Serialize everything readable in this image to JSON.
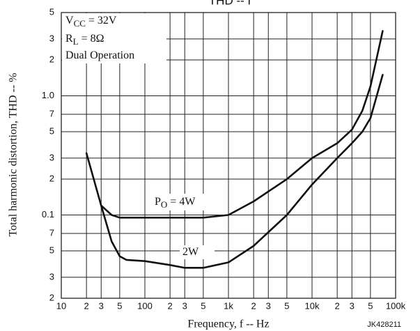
{
  "chart_data": {
    "type": "line",
    "title": "THD -- f",
    "xlabel": "Frequency, f -- Hz",
    "ylabel": "Total harmonic distortion, THD -- %",
    "xscale": "log",
    "yscale": "log",
    "grid": true,
    "color": "#111111",
    "xlim": [
      10,
      100000
    ],
    "ylim": [
      0.02,
      5
    ],
    "xticks": [
      10,
      {
        "value": 20,
        "label": "2"
      },
      {
        "value": 30,
        "label": "3"
      },
      {
        "value": 50,
        "label": "5"
      },
      100,
      {
        "value": 200,
        "label": "2"
      },
      {
        "value": 300,
        "label": "3"
      },
      {
        "value": 500,
        "label": "5"
      },
      {
        "value": 1000,
        "label": "1k"
      },
      {
        "value": 2000,
        "label": "2"
      },
      {
        "value": 3000,
        "label": "3"
      },
      {
        "value": 5000,
        "label": "5"
      },
      {
        "value": 10000,
        "label": "10k"
      },
      {
        "value": 20000,
        "label": "2"
      },
      {
        "value": 30000,
        "label": "3"
      },
      {
        "value": 50000,
        "label": "5"
      },
      {
        "value": 100000,
        "label": "100k"
      }
    ],
    "yticks": [
      5,
      3,
      2,
      {
        "value": 1,
        "label": "1.0"
      },
      {
        "value": 0.7,
        "label": "7"
      },
      {
        "value": 0.5,
        "label": "5"
      },
      {
        "value": 0.3,
        "label": "3"
      },
      {
        "value": 0.2,
        "label": "2"
      },
      0.1,
      {
        "value": 0.07,
        "label": "7"
      },
      {
        "value": 0.05,
        "label": "5"
      },
      {
        "value": 0.03,
        "label": "3"
      },
      {
        "value": 0.02,
        "label": "2"
      }
    ],
    "series": [
      {
        "x": [
          20,
          30,
          40,
          50,
          100,
          500,
          1000,
          2000,
          5000,
          10000,
          20000,
          30000,
          40000,
          50000,
          70000
        ],
        "values": [
          0.33,
          0.12,
          0.1,
          0.095,
          0.095,
          0.095,
          0.1,
          0.13,
          0.2,
          0.3,
          0.4,
          0.52,
          0.75,
          1.2,
          3.5
        ]
      },
      {
        "x": [
          30,
          40,
          50,
          60,
          100,
          200,
          300,
          500,
          1000,
          2000,
          5000,
          10000,
          20000,
          30000,
          40000,
          50000,
          70000
        ],
        "values": [
          0.12,
          0.06,
          0.045,
          0.042,
          0.041,
          0.038,
          0.036,
          0.036,
          0.04,
          0.055,
          0.1,
          0.18,
          0.3,
          0.4,
          0.5,
          0.65,
          1.5
        ]
      }
    ],
    "annotations": [
      {
        "text": "V",
        "sub": "CC",
        "rest": " = 32V"
      },
      {
        "text": "R",
        "sub": "L",
        "rest": " = 8Ω"
      },
      {
        "text": "Dual Operation"
      },
      {
        "text": "P",
        "sub": "O",
        "rest": " = 4W"
      },
      {
        "text": "2W"
      },
      {
        "text": "JK428211"
      }
    ]
  }
}
